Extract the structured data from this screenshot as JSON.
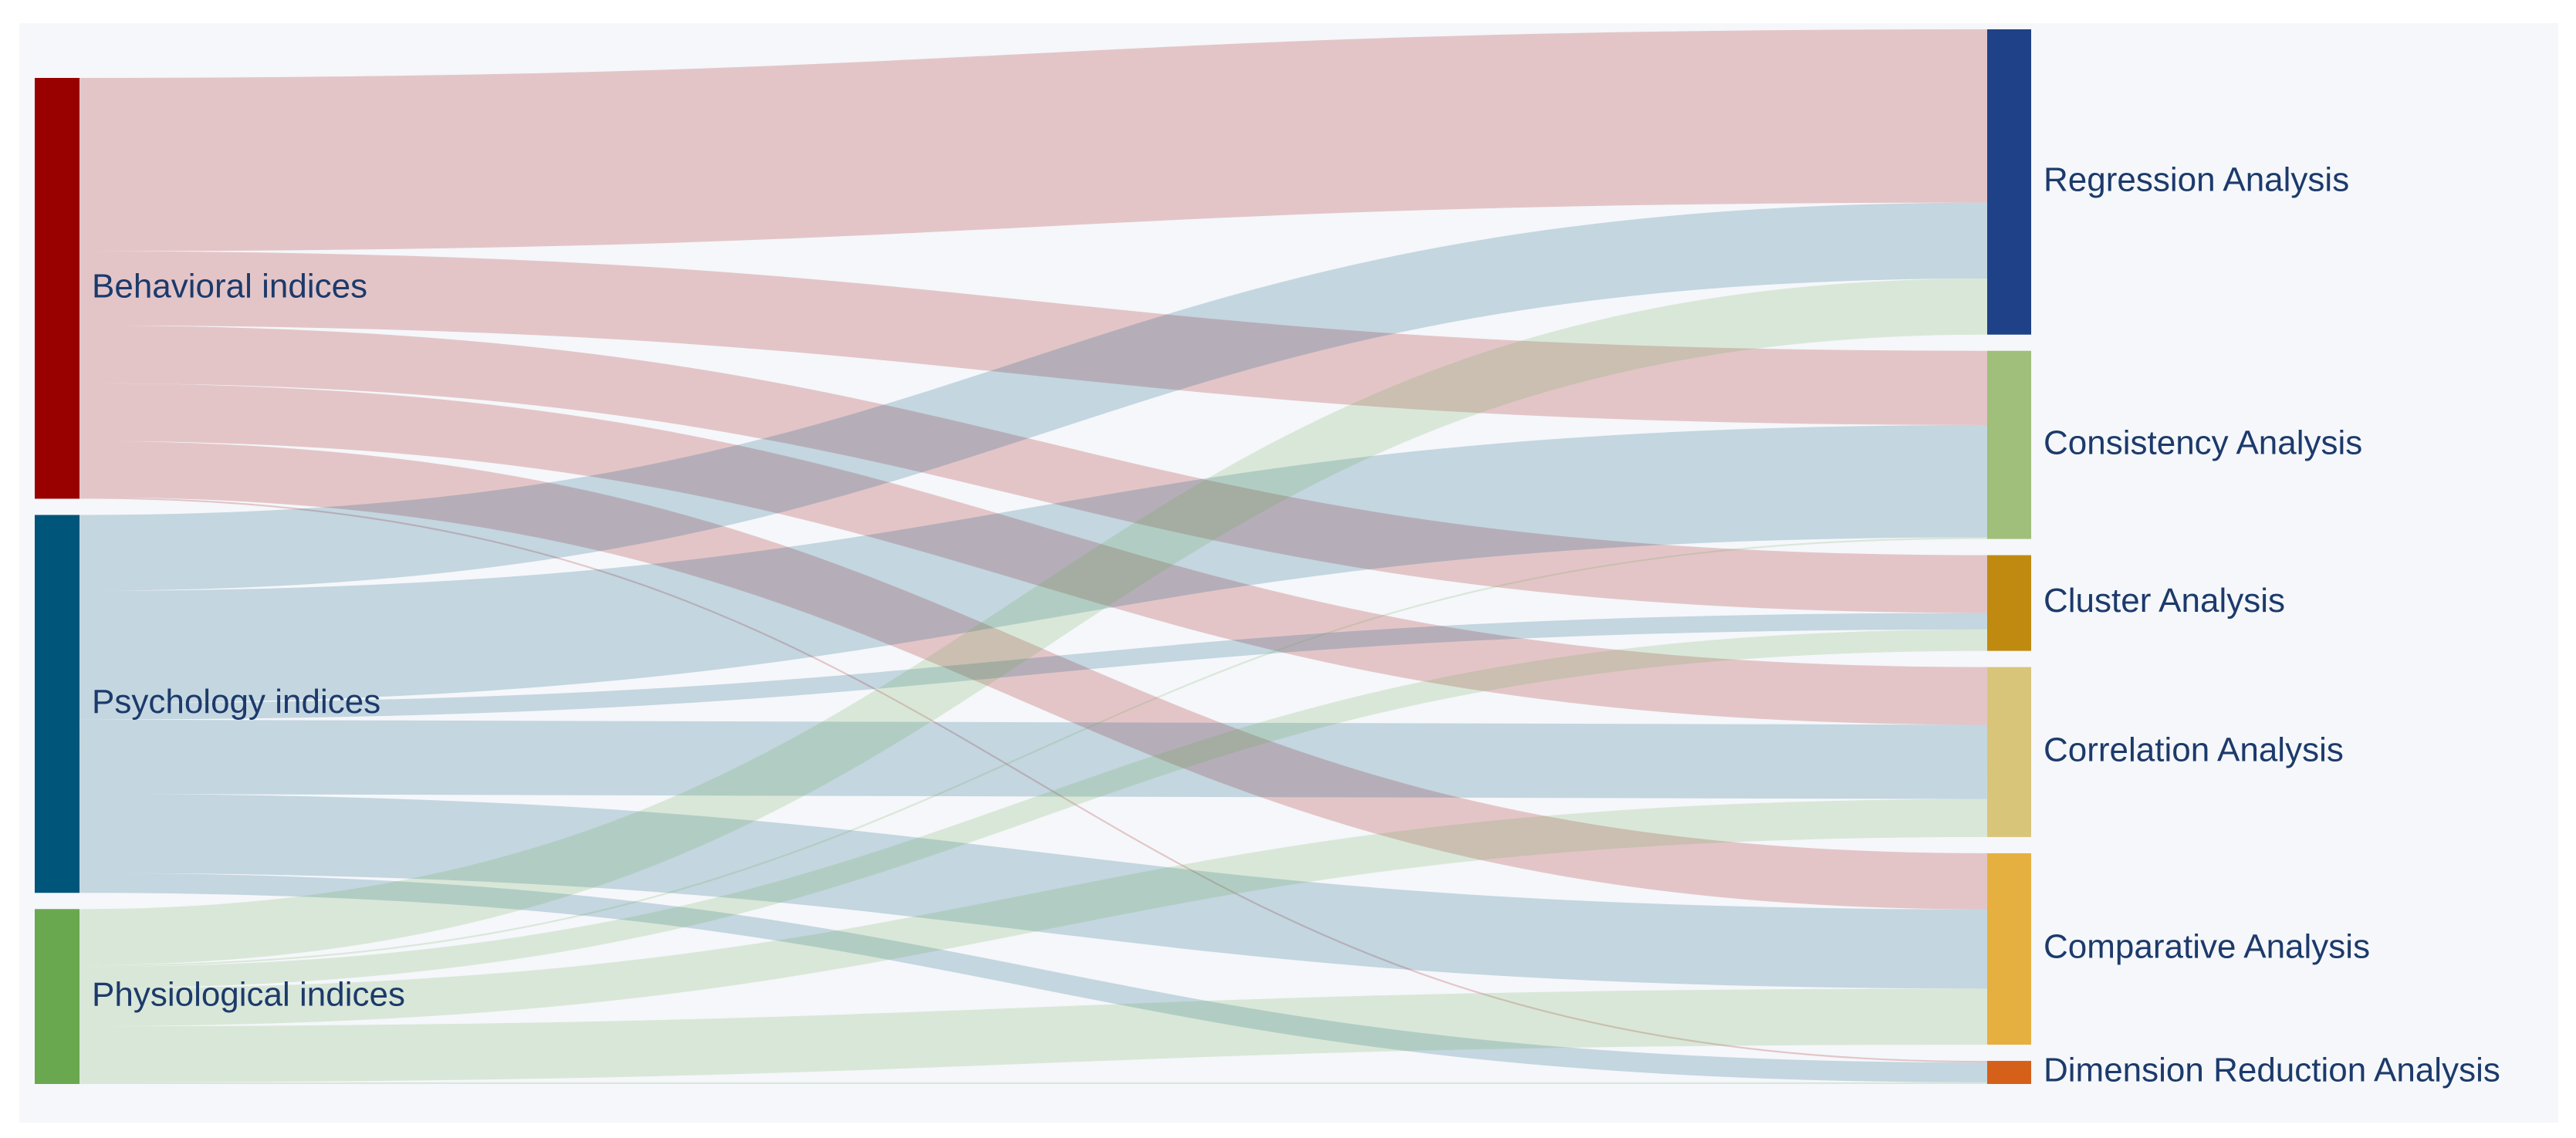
{
  "chart_data": {
    "type": "sankey",
    "nodes": [
      {
        "name": "Behavioral indices",
        "color": "#990000"
      },
      {
        "name": "Psychology indices",
        "color": "#00557a"
      },
      {
        "name": "Physiological indices",
        "color": "#6aa84f"
      },
      {
        "name": "Regression Analysis",
        "color": "#1f4188"
      },
      {
        "name": "Consistency Analysis",
        "color": "#9fbf7a"
      },
      {
        "name": "Cluster Analysis",
        "color": "#c08a10"
      },
      {
        "name": "Correlation Analysis",
        "color": "#d9c57a"
      },
      {
        "name": "Comparative Analysis",
        "color": "#e6b040"
      },
      {
        "name": "Dimension Reduction Analysis",
        "color": "#d4601a"
      }
    ],
    "links": [
      {
        "source": 0,
        "target": 3,
        "value": 105
      },
      {
        "source": 0,
        "target": 4,
        "value": 45
      },
      {
        "source": 0,
        "target": 5,
        "value": 35
      },
      {
        "source": 0,
        "target": 6,
        "value": 35
      },
      {
        "source": 0,
        "target": 7,
        "value": 34
      },
      {
        "source": 0,
        "target": 8,
        "value": 1
      },
      {
        "source": 1,
        "target": 3,
        "value": 46
      },
      {
        "source": 1,
        "target": 4,
        "value": 68
      },
      {
        "source": 1,
        "target": 5,
        "value": 10
      },
      {
        "source": 1,
        "target": 6,
        "value": 45
      },
      {
        "source": 1,
        "target": 7,
        "value": 48
      },
      {
        "source": 1,
        "target": 8,
        "value": 12
      },
      {
        "source": 2,
        "target": 3,
        "value": 34
      },
      {
        "source": 2,
        "target": 4,
        "value": 1
      },
      {
        "source": 2,
        "target": 5,
        "value": 13
      },
      {
        "source": 2,
        "target": 6,
        "value": 23
      },
      {
        "source": 2,
        "target": 7,
        "value": 34
      },
      {
        "source": 2,
        "target": 8,
        "value": 1
      }
    ]
  }
}
